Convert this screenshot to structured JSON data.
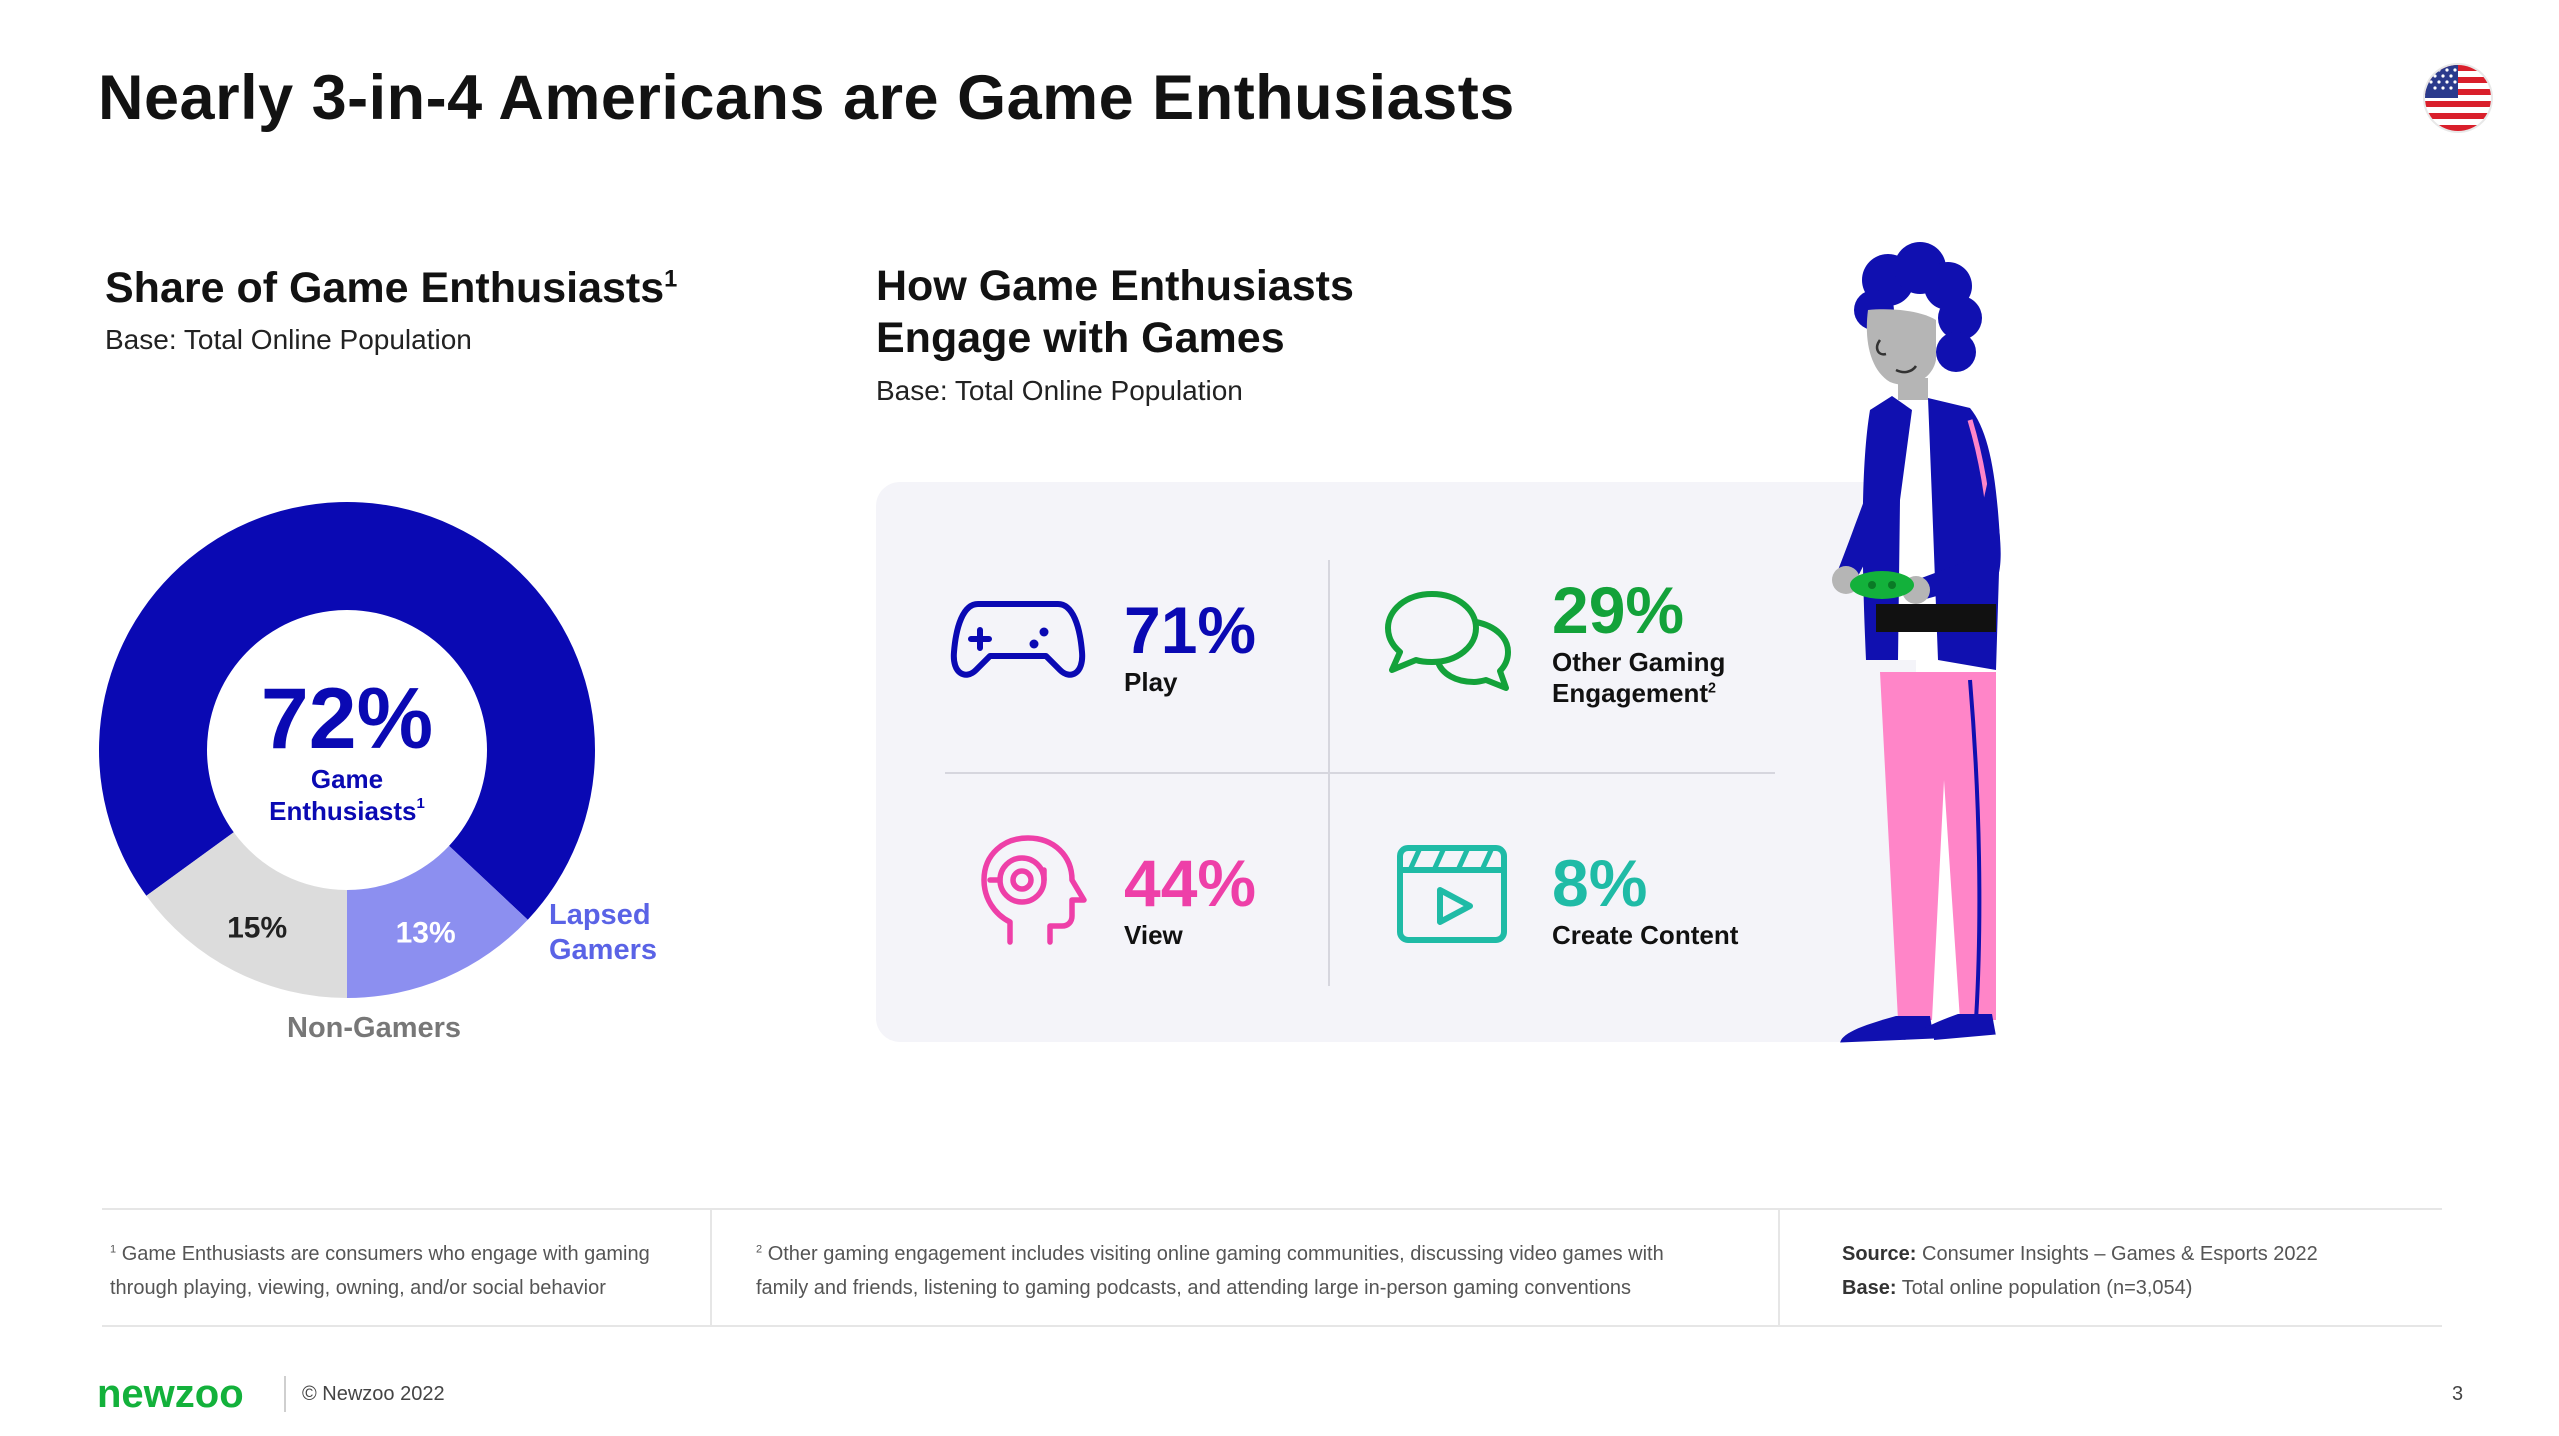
{
  "title": "Nearly 3-in-4 Americans are Game Enthusiasts",
  "flag_icon": "us-flag-icon",
  "share_section": {
    "title": "Share of Game Enthusiasts",
    "title_sup": "1",
    "base": "Base: Total Online Population",
    "center_value": "72%",
    "center_label_line1": "Game",
    "center_label_line2": "Enthusiasts",
    "center_label_sup": "1",
    "lapsed_label_line1": "Lapsed",
    "lapsed_label_line2": "Gamers",
    "non_gamers_label": "Non-Gamers"
  },
  "chart_data": {
    "type": "pie",
    "title": "Share of Game Enthusiasts",
    "categories": [
      "Game Enthusiasts",
      "Lapsed Gamers",
      "Non-Gamers"
    ],
    "values": [
      72,
      13,
      15
    ],
    "value_labels": [
      "72%",
      "13%",
      "15%"
    ],
    "colors": [
      "#0a09b3",
      "#8c8ff0",
      "#dcdcdc"
    ],
    "donut": true
  },
  "engage_section": {
    "title_line1": "How Game Enthusiasts",
    "title_line2": "Engage with Games",
    "base": "Base: Total Online Population",
    "stats": [
      {
        "value": "71%",
        "label": "Play",
        "color": "#0a09b3",
        "icon": "gamepad-icon"
      },
      {
        "value": "29%",
        "label_line1": "Other Gaming",
        "label_line2": "Engagement",
        "label_sup": "2",
        "color": "#13a23a",
        "icon": "chat-bubbles-icon"
      },
      {
        "value": "44%",
        "label": "View",
        "color": "#ee3fa8",
        "icon": "head-headset-icon"
      },
      {
        "value": "8%",
        "label": "Create Content",
        "color": "#1fbba6",
        "icon": "video-clapper-icon"
      }
    ]
  },
  "footnotes": {
    "fn1_sup": "1",
    "fn1_line1": "Game Enthusiasts are consumers who engage with gaming",
    "fn1_line2": "through playing, viewing, owning, and/or social behavior",
    "fn2_sup": "2",
    "fn2_line1": "Other gaming engagement includes visiting online gaming communities, discussing video games with",
    "fn2_line2": "family and friends, listening to gaming podcasts, and attending large in-person gaming conventions",
    "source_label": "Source:",
    "source_value": "Consumer Insights – Games & Esports 2022",
    "base_label": "Base:",
    "base_value": "Total online population (n=3,054)"
  },
  "footer": {
    "logo": "newzoo",
    "copyright": "© Newzoo 2022",
    "page_number": "3"
  }
}
